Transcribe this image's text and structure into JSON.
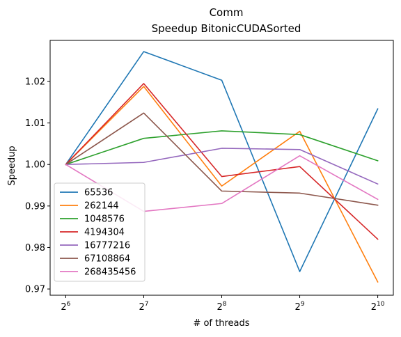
{
  "chart_data": {
    "type": "line",
    "title": "Comm",
    "subtitle": "Speedup BitonicCUDASorted",
    "xlabel": "# of threads",
    "ylabel": "Speedup",
    "x": [
      6,
      7,
      8,
      9,
      10
    ],
    "x_scale": "log2",
    "x_tick_labels": [
      {
        "base": "2",
        "exp": "6"
      },
      {
        "base": "2",
        "exp": "7"
      },
      {
        "base": "2",
        "exp": "8"
      },
      {
        "base": "2",
        "exp": "9"
      },
      {
        "base": "2",
        "exp": "10"
      }
    ],
    "ylim": [
      0.9685,
      1.0299
    ],
    "y_ticks": [
      0.97,
      0.98,
      0.99,
      1.0,
      1.01,
      1.02
    ],
    "y_tick_labels": [
      "0.97",
      "0.98",
      "0.99",
      "1.00",
      "1.01",
      "1.02"
    ],
    "grid": false,
    "legend_position": "lower-left",
    "series": [
      {
        "name": "65536",
        "color": "#1f77b4",
        "values": [
          1.0,
          1.0272,
          1.0203,
          0.9742,
          1.0134
        ]
      },
      {
        "name": "262144",
        "color": "#ff7f0e",
        "values": [
          1.0,
          1.0188,
          0.9948,
          1.008,
          0.9717
        ]
      },
      {
        "name": "1048576",
        "color": "#2ca02c",
        "values": [
          1.0,
          1.0063,
          1.0081,
          1.0072,
          1.0009
        ]
      },
      {
        "name": "4194304",
        "color": "#d62728",
        "values": [
          1.0,
          1.0195,
          0.9971,
          0.9995,
          0.982
        ]
      },
      {
        "name": "16777216",
        "color": "#9467bd",
        "values": [
          1.0,
          1.0005,
          1.0039,
          1.0036,
          0.9953
        ]
      },
      {
        "name": "67108864",
        "color": "#8c564b",
        "values": [
          1.0,
          1.0124,
          0.9936,
          0.9931,
          0.9902
        ]
      },
      {
        "name": "268435456",
        "color": "#e377c2",
        "values": [
          1.0,
          0.9887,
          0.9906,
          1.0021,
          0.9916
        ]
      }
    ]
  }
}
